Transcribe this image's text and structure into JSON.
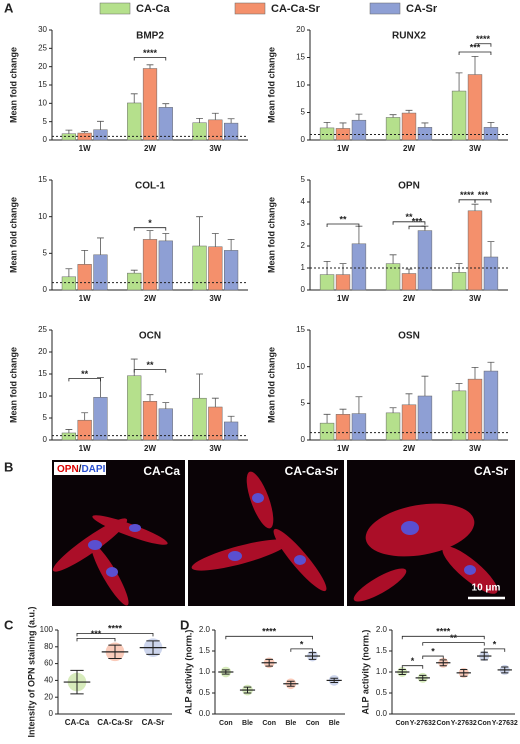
{
  "panel_labels": {
    "a": "A",
    "b": "B",
    "c": "C",
    "d": "D"
  },
  "microscopy": {
    "stain": [
      "OPN",
      "/",
      "DAPI"
    ],
    "images": [
      "CA-Ca",
      "CA-Ca-Sr",
      "CA-Sr"
    ],
    "scale_bar": "10 μm"
  },
  "chart_data": [
    {
      "type": "bar",
      "title": "BMP2",
      "y_label": "Mean fold change",
      "categories": [
        "1W",
        "2W",
        "3W"
      ],
      "ylim": [
        0,
        30
      ],
      "yticks": [
        0,
        5,
        10,
        15,
        20,
        25,
        30
      ],
      "reference_line": 1,
      "series": [
        {
          "name": "CA-Ca",
          "color": "#b5e08c",
          "values": [
            1.7,
            10.1,
            4.7
          ],
          "errors": [
            1.0,
            2.5,
            1.2
          ]
        },
        {
          "name": "CA-Ca-Sr",
          "color": "#f4906c",
          "values": [
            1.9,
            19.5,
            5.5
          ],
          "errors": [
            0.4,
            1.0,
            1.8
          ]
        },
        {
          "name": "CA-Sr",
          "color": "#8e9fd4",
          "values": [
            2.8,
            8.9,
            4.6
          ],
          "errors": [
            2.3,
            1.0,
            1.2
          ]
        }
      ],
      "brackets": [
        {
          "label": "****",
          "y": 22.5,
          "from": [
            1,
            0
          ],
          "to": [
            1,
            2
          ]
        }
      ]
    },
    {
      "type": "bar",
      "title": "RUNX2",
      "y_label": "Mean fold change",
      "categories": [
        "1W",
        "2W",
        "3W"
      ],
      "ylim": [
        0,
        20
      ],
      "yticks": [
        0,
        5,
        10,
        15,
        20
      ],
      "reference_line": 1,
      "series": [
        {
          "color": "#b5e08c",
          "values": [
            2.2,
            4.1,
            8.9
          ],
          "errors": [
            1.0,
            0.5,
            3.3
          ]
        },
        {
          "color": "#f4906c",
          "values": [
            2.1,
            4.9,
            11.9
          ],
          "errors": [
            1.0,
            0.5,
            3.3
          ]
        },
        {
          "color": "#8e9fd4",
          "values": [
            3.6,
            2.3,
            2.3
          ],
          "errors": [
            1.1,
            0.8,
            0.9
          ]
        }
      ],
      "brackets": [
        {
          "label": "***",
          "y": 16,
          "from": [
            2,
            0
          ],
          "to": [
            2,
            2
          ]
        },
        {
          "label": "****",
          "y": 17.5,
          "from": [
            2,
            1
          ],
          "to": [
            2,
            2
          ]
        }
      ]
    },
    {
      "type": "bar",
      "title": "COL-1",
      "y_label": "Mean fold change",
      "categories": [
        "1W",
        "2W",
        "3W"
      ],
      "ylim": [
        0,
        15
      ],
      "yticks": [
        0,
        5,
        10,
        15
      ],
      "reference_line": 1,
      "series": [
        {
          "color": "#b5e08c",
          "values": [
            1.8,
            2.3,
            6.0
          ],
          "errors": [
            1.1,
            0.4,
            4.0
          ]
        },
        {
          "color": "#f4906c",
          "values": [
            3.5,
            6.9,
            5.9
          ],
          "errors": [
            1.9,
            1.2,
            1.8
          ]
        },
        {
          "color": "#8e9fd4",
          "values": [
            4.8,
            6.7,
            5.4
          ],
          "errors": [
            2.3,
            1.0,
            1.5
          ]
        }
      ],
      "brackets": [
        {
          "label": "*",
          "y": 8.5,
          "from": [
            1,
            0
          ],
          "to": [
            1,
            2
          ]
        }
      ]
    },
    {
      "type": "bar",
      "title": "OPN",
      "y_label": "Mean fold change",
      "categories": [
        "1W",
        "2W",
        "3W"
      ],
      "ylim": [
        0,
        5
      ],
      "yticks": [
        0,
        1,
        2,
        3,
        4,
        5
      ],
      "reference_line": 1,
      "series": [
        {
          "color": "#b5e08c",
          "values": [
            0.7,
            1.2,
            0.8
          ],
          "errors": [
            0.6,
            0.4,
            0.4
          ]
        },
        {
          "color": "#f4906c",
          "values": [
            0.7,
            0.75,
            3.6
          ],
          "errors": [
            0.5,
            0.2,
            0.3
          ]
        },
        {
          "color": "#8e9fd4",
          "values": [
            2.1,
            2.7,
            1.5
          ],
          "errors": [
            0.8,
            0.2,
            0.7
          ]
        }
      ],
      "brackets": [
        {
          "label": "**",
          "y": 3.0,
          "from": [
            0,
            0
          ],
          "to": [
            0,
            2
          ]
        },
        {
          "label": "**",
          "y": 3.1,
          "from": [
            1,
            0
          ],
          "to": [
            1,
            2
          ]
        },
        {
          "label": "***",
          "y": 2.9,
          "from": [
            1,
            1
          ],
          "to": [
            1,
            2
          ]
        },
        {
          "label": "****",
          "y": 4.1,
          "from": [
            2,
            0
          ],
          "to": [
            2,
            1
          ]
        },
        {
          "label": "***",
          "y": 4.1,
          "from": [
            2,
            1
          ],
          "to": [
            2,
            2
          ]
        }
      ]
    },
    {
      "type": "bar",
      "title": "OCN",
      "y_label": "Mean fold change",
      "categories": [
        "1W",
        "2W",
        "3W"
      ],
      "ylim": [
        0,
        25
      ],
      "yticks": [
        0,
        5,
        10,
        15,
        20,
        25
      ],
      "reference_line": 1,
      "series": [
        {
          "color": "#b5e08c",
          "values": [
            1.6,
            14.6,
            9.5
          ],
          "errors": [
            0.8,
            3.8,
            5.5
          ]
        },
        {
          "color": "#f4906c",
          "values": [
            4.5,
            8.8,
            7.5
          ],
          "errors": [
            1.7,
            1.5,
            2.0
          ]
        },
        {
          "color": "#8e9fd4",
          "values": [
            9.7,
            7.1,
            4.1
          ],
          "errors": [
            4.5,
            1.4,
            1.3
          ]
        }
      ],
      "brackets": [
        {
          "label": "**",
          "y": 14,
          "from": [
            0,
            0
          ],
          "to": [
            0,
            2
          ]
        },
        {
          "label": "**",
          "y": 16,
          "from": [
            1,
            0
          ],
          "to": [
            1,
            2
          ]
        }
      ]
    },
    {
      "type": "bar",
      "title": "OSN",
      "y_label": "Mean fold change",
      "categories": [
        "1W",
        "2W",
        "3W"
      ],
      "ylim": [
        0,
        15
      ],
      "yticks": [
        0,
        5,
        10,
        15
      ],
      "reference_line": 1,
      "series": [
        {
          "color": "#b5e08c",
          "values": [
            2.3,
            3.7,
            6.7
          ],
          "errors": [
            1.2,
            0.7,
            1.0
          ]
        },
        {
          "color": "#f4906c",
          "values": [
            3.5,
            4.8,
            8.3
          ],
          "errors": [
            0.7,
            1.5,
            1.6
          ]
        },
        {
          "color": "#8e9fd4",
          "values": [
            3.6,
            6.0,
            9.4
          ],
          "errors": [
            2.3,
            2.7,
            1.2
          ]
        }
      ],
      "brackets": []
    },
    {
      "type": "dot",
      "y_label": "Intensity of OPN staining (a.u.)",
      "categories": [
        "CA-Ca",
        "CA-Ca-Sr",
        "CA-Sr"
      ],
      "colors": [
        "#8dc63f",
        "#f26b3a",
        "#6f86c9"
      ],
      "values": [
        38,
        74,
        79
      ],
      "errors": [
        14,
        8,
        8
      ],
      "ylim": [
        0,
        100
      ],
      "yticks": [
        0,
        20,
        40,
        60,
        80,
        100
      ],
      "brackets": [
        {
          "label": "***",
          "y": 90,
          "from": 0,
          "to": 1
        },
        {
          "label": "****",
          "y": 96,
          "from": 0,
          "to": 2
        }
      ]
    },
    {
      "type": "dot",
      "y_label": "ALP activity (norm.)",
      "categories": [
        "Con",
        "Ble",
        "Con",
        "Ble",
        "Con",
        "Ble"
      ],
      "colors": [
        "#8dc63f",
        "#8dc63f",
        "#f26b3a",
        "#f26b3a",
        "#6f86c9",
        "#6f86c9"
      ],
      "values": [
        1.0,
        0.57,
        1.22,
        0.72,
        1.38,
        0.8
      ],
      "errors": [
        0.05,
        0.07,
        0.08,
        0.06,
        0.08,
        0.05
      ],
      "ylim": [
        0,
        2
      ],
      "yticks": [
        {
          "value": 0,
          "label": "0.0"
        },
        {
          "value": 0.5,
          "label": "0.5"
        },
        {
          "value": 1,
          "label": "1.0"
        },
        {
          "value": 1.5,
          "label": "1.5"
        },
        {
          "value": 2,
          "label": "2.0"
        }
      ],
      "brackets": [
        {
          "label": "****",
          "y": 1.85,
          "from": 0,
          "to": 4
        },
        {
          "label": "*",
          "y": 1.55,
          "from": 3,
          "to": 4
        }
      ]
    },
    {
      "type": "dot",
      "y_label": "ALP activity (norm.)",
      "categories": [
        "Con",
        "Y-27632",
        "Con",
        "Y-27632",
        "Con",
        "Y-27632"
      ],
      "colors": [
        "#8dc63f",
        "#8dc63f",
        "#f26b3a",
        "#f26b3a",
        "#6f86c9",
        "#6f86c9"
      ],
      "values": [
        1.0,
        0.86,
        1.22,
        0.98,
        1.38,
        1.05
      ],
      "errors": [
        0.06,
        0.06,
        0.07,
        0.08,
        0.09,
        0.07
      ],
      "ylim": [
        0,
        2
      ],
      "yticks": [
        {
          "value": 0,
          "label": "0.0"
        },
        {
          "value": 0.5,
          "label": "0.5"
        },
        {
          "value": 1,
          "label": "1.0"
        },
        {
          "value": 1.5,
          "label": "1.5"
        },
        {
          "value": 2,
          "label": "2.0"
        }
      ],
      "brackets": [
        {
          "label": "*",
          "y": 1.15,
          "from": 0,
          "to": 1
        },
        {
          "label": "*",
          "y": 1.38,
          "from": 1,
          "to": 2
        },
        {
          "label": "****",
          "y": 1.85,
          "from": 0,
          "to": 4
        },
        {
          "label": "**",
          "y": 1.7,
          "from": 1,
          "to": 4
        },
        {
          "label": "*",
          "y": 1.55,
          "from": 4,
          "to": 5
        }
      ]
    }
  ]
}
